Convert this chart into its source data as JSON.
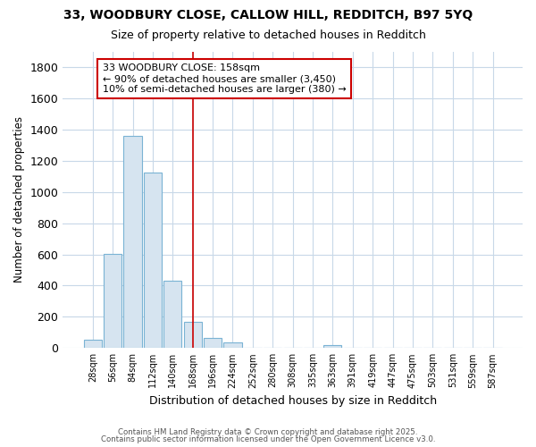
{
  "title_line1": "33, WOODBURY CLOSE, CALLOW HILL, REDDITCH, B97 5YQ",
  "title_line2": "Size of property relative to detached houses in Redditch",
  "xlabel": "Distribution of detached houses by size in Redditch",
  "ylabel": "Number of detached properties",
  "bar_color": "#d6e4f0",
  "bar_edge_color": "#7ab3d4",
  "categories": [
    "28sqm",
    "56sqm",
    "84sqm",
    "112sqm",
    "140sqm",
    "168sqm",
    "196sqm",
    "224sqm",
    "252sqm",
    "280sqm",
    "308sqm",
    "335sqm",
    "363sqm",
    "391sqm",
    "419sqm",
    "447sqm",
    "475sqm",
    "503sqm",
    "531sqm",
    "559sqm",
    "587sqm"
  ],
  "values": [
    55,
    605,
    1360,
    1125,
    430,
    170,
    65,
    35,
    0,
    0,
    0,
    0,
    20,
    0,
    0,
    0,
    0,
    0,
    0,
    0,
    0
  ],
  "ylim": [
    0,
    1900
  ],
  "yticks": [
    0,
    200,
    400,
    600,
    800,
    1000,
    1200,
    1400,
    1600,
    1800
  ],
  "vline_x_idx": 5,
  "vline_color": "#cc0000",
  "annotation_text": "33 WOODBURY CLOSE: 158sqm\n← 90% of detached houses are smaller (3,450)\n10% of semi-detached houses are larger (380) →",
  "footer_line1": "Contains HM Land Registry data © Crown copyright and database right 2025.",
  "footer_line2": "Contains public sector information licensed under the Open Government Licence v3.0.",
  "bg_color": "#ffffff",
  "plot_bg_color": "#ffffff",
  "grid_color": "#c8d8e8"
}
